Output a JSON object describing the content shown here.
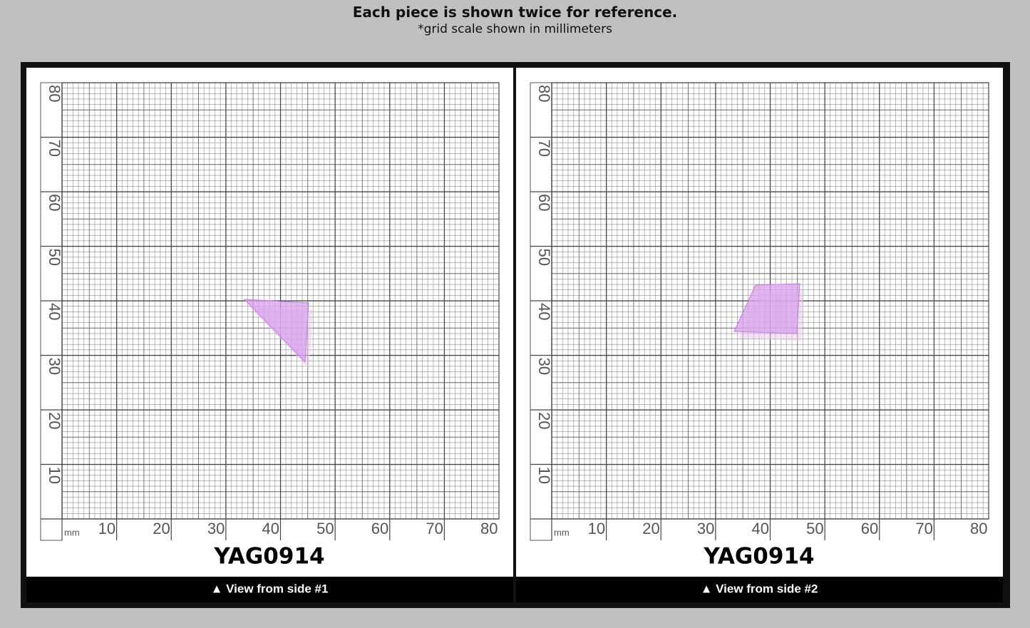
{
  "header": {
    "title": "Each piece is shown twice for reference.",
    "subtitle": "*grid scale shown in millimeters"
  },
  "panels": [
    {
      "y_labels": [
        "80",
        "70",
        "60",
        "50",
        "40",
        "30",
        "20",
        "10"
      ],
      "x_unit": "mm",
      "x_labels": [
        "10",
        "20",
        "30",
        "40",
        "50",
        "60",
        "70",
        "80"
      ],
      "label": "YAG0914",
      "caption": "▲ View from side #1"
    },
    {
      "y_labels": [
        "80",
        "70",
        "60",
        "50",
        "40",
        "30",
        "20",
        "10"
      ],
      "x_unit": "mm",
      "x_labels": [
        "10",
        "20",
        "30",
        "40",
        "50",
        "60",
        "70",
        "80"
      ],
      "label": "YAG0914",
      "caption": "▲ View from side #2"
    }
  ]
}
